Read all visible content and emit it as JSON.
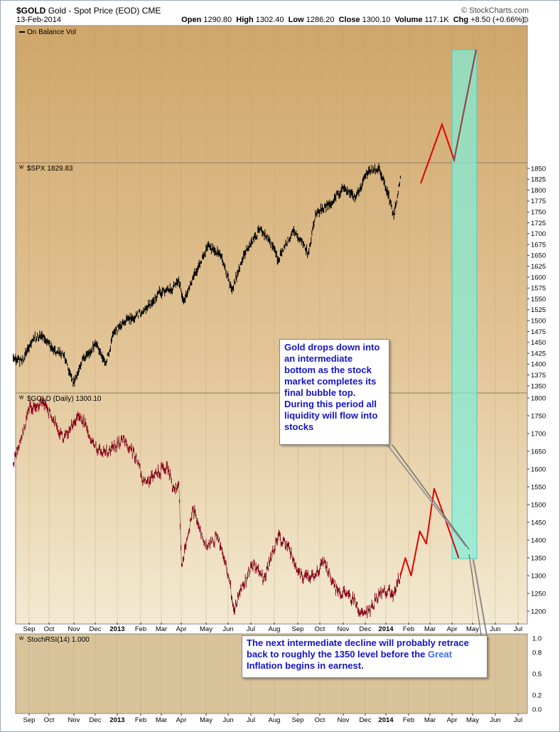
{
  "header": {
    "symbol": "$GOLD",
    "description": "Gold - Spot Price (EOD)",
    "exchange": "CME",
    "date": "13-Feb-2014",
    "brand": "© StockCharts.com",
    "open_label": "Open",
    "open": "1290.80",
    "high_label": "High",
    "high": "1302.40",
    "low_label": "Low",
    "low": "1286.20",
    "close_label": "Close",
    "close": "1300.10",
    "volume_label": "Volume",
    "volume": "117.1K",
    "chg_label": "Chg",
    "chg": "+8.50 (+0.66%)"
  },
  "panels": {
    "obv_title": "On Balance Vol",
    "spx_title": "$SPX 1829.83",
    "gold_title": "$GOLD (Daily) 1300.10",
    "rsi_title": "StochRSI(14) 1.000"
  },
  "callouts": {
    "upper": "Gold drops down into an intermediate bottom as the stock market completes its final bubble top. During this period all liquidity will flow into stocks",
    "lower_pre": "The next intermediate decline will probably retrace back to roughly the 1350 level before the ",
    "lower_highlight": "Great",
    "lower_post": " Inflation begins in earnest."
  },
  "colors": {
    "background": "#d2b07e",
    "gold_line": "#a0001e",
    "spx_line": "#000000",
    "projection": "#e00000",
    "zone": "#7ef0dc",
    "callout_text": "#1414c8"
  },
  "chart_data": [
    {
      "type": "line",
      "title": "$SPX 1829.83",
      "x_ticks": [
        "Sep",
        "Oct",
        "Nov",
        "Dec",
        "2013",
        "Feb",
        "Mar",
        "Apr",
        "May",
        "Jun",
        "Jul",
        "Aug",
        "Sep",
        "Oct",
        "Nov",
        "Dec",
        "2014",
        "Feb",
        "Mar",
        "Apr",
        "May",
        "Jun",
        "Jul"
      ],
      "ylim": [
        1330,
        1870
      ],
      "y_ticks": [
        1350,
        1375,
        1400,
        1425,
        1450,
        1475,
        1500,
        1525,
        1550,
        1575,
        1600,
        1625,
        1650,
        1675,
        1700,
        1725,
        1750,
        1775,
        1800,
        1825,
        1850
      ],
      "series": [
        {
          "x": [
            "2012-08-24",
            "2012-09-05",
            "2012-09-14",
            "2012-09-21",
            "2012-10-05",
            "2012-10-19",
            "2012-11-02",
            "2012-11-15",
            "2012-11-30",
            "2012-12-18",
            "2012-12-31",
            "2013-01-10",
            "2013-01-25",
            "2013-02-19",
            "2013-03-05",
            "2013-03-14",
            "2013-04-01",
            "2013-04-11",
            "2013-04-18",
            "2013-05-01",
            "2013-05-21",
            "2013-06-07",
            "2013-06-24",
            "2013-07-10",
            "2013-08-02",
            "2013-08-15",
            "2013-08-27",
            "2013-09-18",
            "2013-10-08",
            "2013-10-18",
            "2013-11-07",
            "2013-11-27",
            "2013-12-12",
            "2013-12-31",
            "2014-01-15",
            "2014-01-27",
            "2014-02-04",
            "2014-02-13"
          ],
          "values": [
            1415,
            1405,
            1437,
            1460,
            1465,
            1430,
            1420,
            1354,
            1416,
            1445,
            1402,
            1470,
            1495,
            1520,
            1540,
            1565,
            1570,
            1595,
            1545,
            1600,
            1670,
            1655,
            1570,
            1650,
            1710,
            1685,
            1640,
            1710,
            1655,
            1745,
            1770,
            1805,
            1780,
            1845,
            1850,
            1790,
            1740,
            1829.83
          ]
        }
      ]
    },
    {
      "type": "line",
      "title": "$GOLD (Daily) 1300.10",
      "x_ticks": [
        "Sep",
        "Oct",
        "Nov",
        "Dec",
        "2013",
        "Feb",
        "Mar",
        "Apr",
        "May",
        "Jun",
        "Jul",
        "Aug",
        "Sep",
        "Oct",
        "Nov",
        "Dec",
        "2014",
        "Feb",
        "Mar",
        "Apr",
        "May",
        "Jun",
        "Jul"
      ],
      "ylim": [
        1170,
        1820
      ],
      "y_ticks": [
        1200,
        1250,
        1300,
        1350,
        1400,
        1450,
        1500,
        1550,
        1600,
        1650,
        1700,
        1750,
        1800
      ],
      "series": [
        {
          "x": [
            "2012-08-24",
            "2012-09-05",
            "2012-09-14",
            "2012-09-24",
            "2012-10-05",
            "2012-10-18",
            "2012-11-02",
            "2012-11-16",
            "2012-11-26",
            "2012-12-06",
            "2012-12-20",
            "2013-01-04",
            "2013-01-25",
            "2013-02-14",
            "2013-02-20",
            "2013-03-06",
            "2013-03-26",
            "2013-04-03",
            "2013-04-11",
            "2013-04-15",
            "2013-04-22",
            "2013-05-01",
            "2013-05-10",
            "2013-05-20",
            "2013-06-04",
            "2013-06-20",
            "2013-06-27",
            "2013-07-03",
            "2013-07-22",
            "2013-08-07",
            "2013-08-27",
            "2013-09-09",
            "2013-09-30",
            "2013-10-15",
            "2013-10-31",
            "2013-11-13",
            "2013-11-29",
            "2013-12-12",
            "2013-12-19",
            "2013-12-31",
            "2014-01-15",
            "2014-01-27",
            "2014-02-04",
            "2014-02-13"
          ],
          "values": [
            1615,
            1690,
            1770,
            1772,
            1790,
            1740,
            1680,
            1730,
            1750,
            1700,
            1650,
            1650,
            1685,
            1620,
            1560,
            1575,
            1610,
            1545,
            1560,
            1330,
            1400,
            1490,
            1430,
            1380,
            1410,
            1290,
            1200,
            1240,
            1330,
            1290,
            1410,
            1380,
            1290,
            1300,
            1340,
            1270,
            1245,
            1230,
            1190,
            1200,
            1250,
            1260,
            1250,
            1300.1
          ]
        },
        {
          "name": "",
          "x": [
            "2014-02-13",
            "2014-02-20",
            "2014-02-28",
            "2014-03-12",
            "2014-03-21",
            "2014-04-01",
            "2014-04-18",
            "2014-05-05"
          ],
          "values": [
            1300,
            1350,
            1300,
            1425,
            1390,
            1545,
            1450,
            1350
          ]
        }
      ]
    },
    {
      "type": "line",
      "title": "StochRSI(14) 1.000",
      "ylim": [
        -0.05,
        1.05
      ],
      "y_ticks": [
        "1.0",
        "0.8",
        "0.5",
        "0.2",
        "0.0"
      ],
      "x_ticks": [
        "Sep",
        "Oct",
        "Nov",
        "Dec",
        "2013",
        "Feb",
        "Mar",
        "Apr",
        "May",
        "Jun",
        "Jul",
        "Aug",
        "Sep",
        "Oct",
        "Nov",
        "Dec",
        "2014",
        "Feb",
        "Mar",
        "Apr",
        "May",
        "Jun",
        "Jul"
      ]
    },
    {
      "type": "line",
      "title": "On Balance Vol"
    }
  ]
}
